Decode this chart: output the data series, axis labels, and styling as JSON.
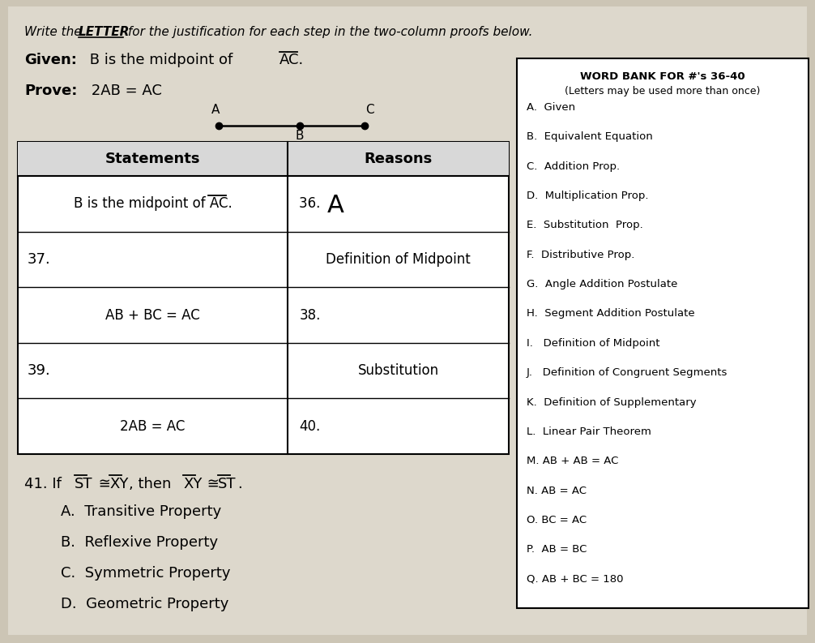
{
  "bg_color": "#ccc5b5",
  "page_bg": "#ddd8cc",
  "title_italic": "Write the ",
  "title_underline": "LETTER",
  "title_rest": " for the justification for each step in the two-column proofs below.",
  "given_label": "Given:",
  "given_body": "  B is the midpoint of ",
  "given_segment": "AC",
  "prove_label": "Prove:",
  "prove_body": "  2AB = AC",
  "word_bank_title": "WORD BANK FOR #'s 36-40",
  "word_bank_subtitle": "(Letters may be used more than once)",
  "word_bank_items": [
    "A.  Given",
    "B.  Equivalent Equation",
    "C.  Addition Prop.",
    "D.  Multiplication Prop.",
    "E.  Substitution  Prop.",
    "F.  Distributive Prop.",
    "G.  Angle Addition Postulate",
    "H.  Segment Addition Postulate",
    "I.   Definition of Midpoint",
    "J.   Definition of Congruent Segments",
    "K.  Definition of Supplementary",
    "L.  Linear Pair Theorem",
    "M. AB + AB = AC",
    "N. AB = AC",
    "O. BC = AC",
    "P.  AB = BC",
    "Q. AB + BC = 180"
  ],
  "table_headers": [
    "Statements",
    "Reasons"
  ],
  "table_rows": [
    [
      "B is the midpoint of AC.",
      "36. A"
    ],
    [
      "37.",
      "Definition of Midpoint"
    ],
    [
      "AB + BC = AC",
      "38."
    ],
    [
      "39.",
      "Substitution"
    ],
    [
      "2AB = AC",
      "40."
    ]
  ],
  "problem41_prefix": "41. If ",
  "problem41_options": [
    "A.  Transitive Property",
    "B.  Reflexive Property",
    "C.  Symmetric Property",
    "D.  Geometric Property"
  ]
}
